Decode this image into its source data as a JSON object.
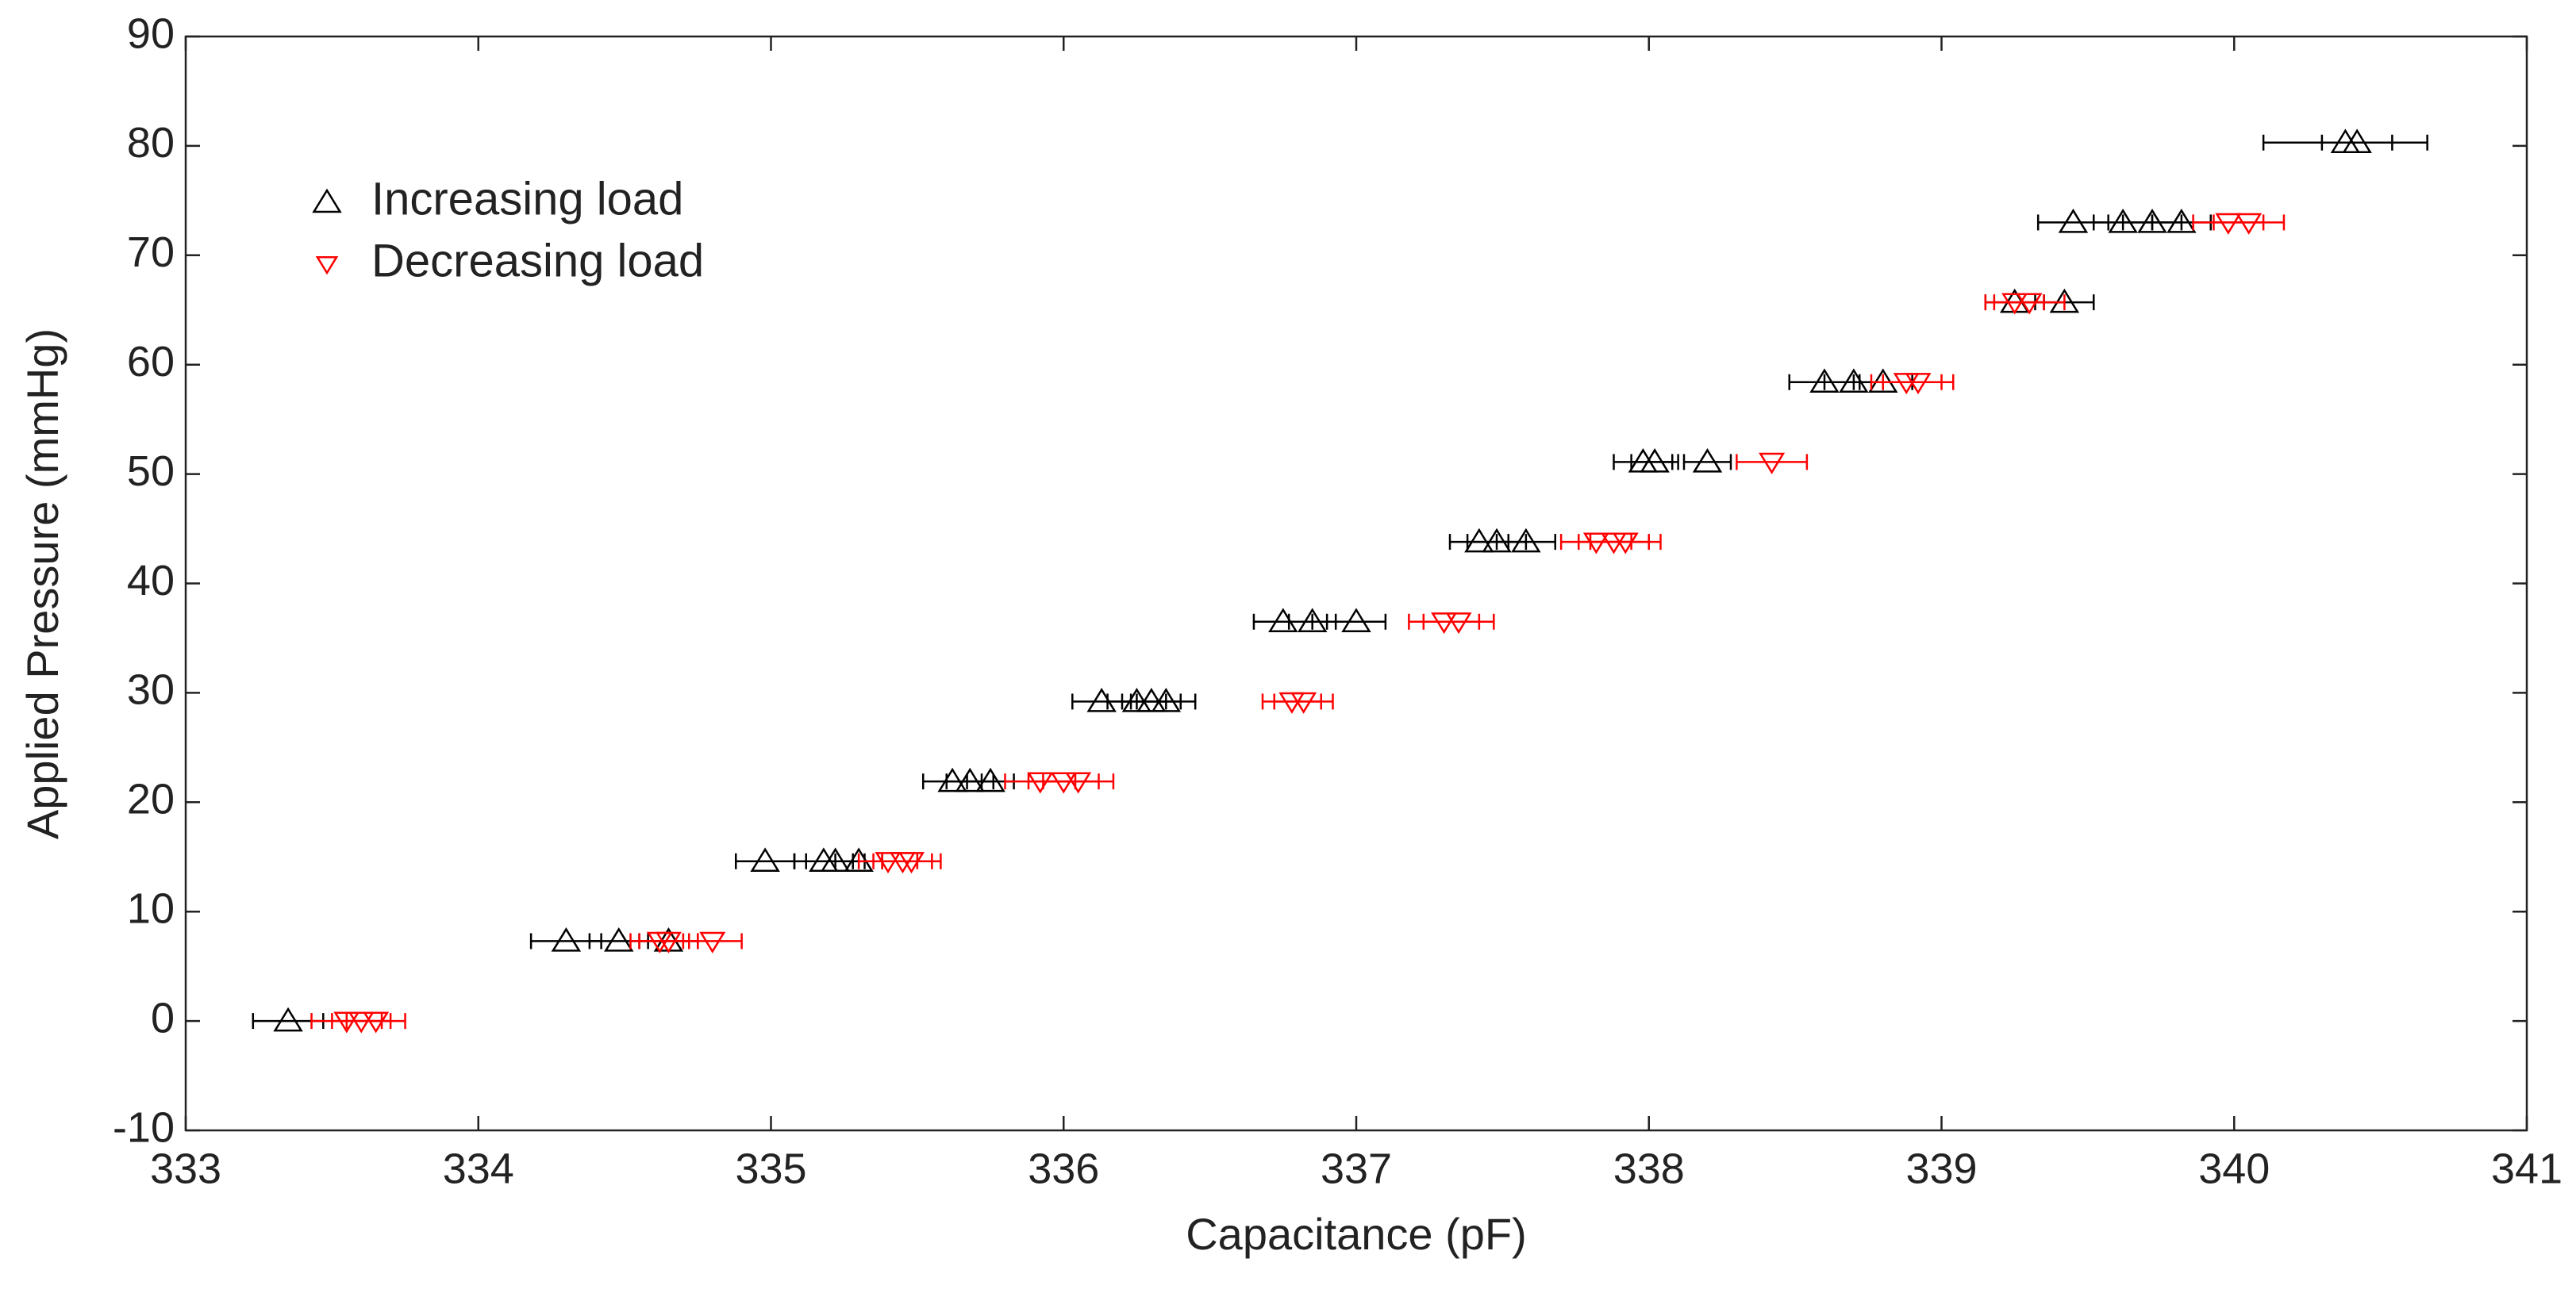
{
  "chart_data": {
    "type": "scatter",
    "x_label": "Capacitance (pF)",
    "y_label": "Applied Pressure (mmHg)",
    "xlim": [
      333,
      341
    ],
    "ylim": [
      -10,
      90
    ],
    "xticks": [
      333,
      334,
      335,
      336,
      337,
      338,
      339,
      340,
      341
    ],
    "yticks": [
      -10,
      0,
      10,
      20,
      30,
      40,
      50,
      60,
      70,
      80,
      90
    ],
    "legend_position": "upper left",
    "series": [
      {
        "name": "Increasing load",
        "color": "#000000",
        "marker": "triangle-up",
        "x": [
          333.35,
          334.3,
          334.48,
          334.65,
          334.98,
          335.18,
          335.22,
          335.3,
          335.62,
          335.68,
          335.75,
          336.13,
          336.25,
          336.3,
          336.35,
          336.75,
          336.85,
          337.0,
          337.42,
          337.48,
          337.58,
          337.98,
          338.02,
          338.2,
          338.6,
          338.7,
          338.8,
          339.25,
          339.42,
          339.45,
          339.62,
          339.72,
          339.82,
          340.38,
          340.42
        ],
        "values": [
          0,
          7.3,
          7.3,
          7.3,
          14.6,
          14.6,
          14.6,
          14.6,
          21.9,
          21.9,
          21.9,
          29.2,
          29.2,
          29.2,
          29.2,
          36.5,
          36.5,
          36.5,
          43.8,
          43.8,
          43.8,
          51.1,
          51.1,
          51.1,
          58.4,
          58.4,
          58.4,
          65.7,
          65.7,
          73,
          73,
          73,
          73,
          80.3,
          80.3
        ],
        "xerr": [
          0.12,
          0.12,
          0.1,
          0.1,
          0.1,
          0.1,
          0.1,
          0.08,
          0.1,
          0.08,
          0.08,
          0.1,
          0.1,
          0.1,
          0.1,
          0.1,
          0.08,
          0.1,
          0.1,
          0.1,
          0.1,
          0.1,
          0.08,
          0.08,
          0.12,
          0.1,
          0.1,
          0.1,
          0.1,
          0.12,
          0.1,
          0.1,
          0.1,
          0.28,
          0.12
        ]
      },
      {
        "name": "Decreasing load",
        "color": "#ff0000",
        "marker": "triangle-down",
        "x": [
          333.55,
          333.6,
          333.65,
          334.62,
          334.65,
          334.8,
          335.4,
          335.45,
          335.48,
          335.92,
          336.0,
          336.05,
          336.78,
          336.82,
          337.3,
          337.35,
          337.82,
          337.88,
          337.92,
          338.42,
          338.88,
          338.92,
          339.25,
          339.3,
          339.98,
          340.05
        ],
        "values": [
          0,
          0,
          0,
          7.3,
          7.3,
          7.3,
          14.6,
          14.6,
          14.6,
          21.9,
          21.9,
          21.9,
          29.2,
          29.2,
          36.5,
          36.5,
          43.8,
          43.8,
          43.8,
          51.1,
          58.4,
          58.4,
          65.7,
          65.7,
          73,
          73
        ],
        "xerr": [
          0.12,
          0.1,
          0.1,
          0.1,
          0.1,
          0.1,
          0.1,
          0.1,
          0.1,
          0.12,
          0.12,
          0.12,
          0.1,
          0.1,
          0.12,
          0.12,
          0.12,
          0.12,
          0.12,
          0.12,
          0.12,
          0.12,
          0.1,
          0.12,
          0.12,
          0.12
        ]
      }
    ]
  }
}
